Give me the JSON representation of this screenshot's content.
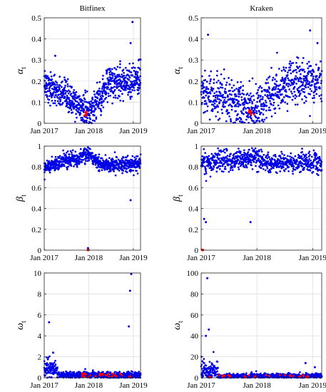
{
  "chart_data": [
    {
      "type": "scatter",
      "title": "Bitfinex",
      "ylabel": "α",
      "ylabel_sub": "t",
      "x_ticks": [
        "Jan 2017",
        "Jan 2018",
        "Jan 2019"
      ],
      "xlim": [
        "2017-01",
        "2019-03"
      ],
      "ylim": [
        0,
        0.5
      ],
      "y_ticks": [
        "0",
        "0.1",
        "0.2",
        "0.3",
        "0.4",
        "0.5"
      ],
      "grid": true,
      "colors": {
        "points": "#0000e6",
        "highlight": "#ff0000"
      },
      "key_points": [
        [
          "2017-01-15",
          0.18
        ],
        [
          "2017-04-01",
          0.16
        ],
        [
          "2017-06-15",
          0.12
        ],
        [
          "2017-09-01",
          0.09
        ],
        [
          "2017-11-15",
          0.06
        ],
        [
          "2017-12-20",
          0.04
        ],
        [
          "2018-03-01",
          0.1
        ],
        [
          "2018-05-15",
          0.17
        ],
        [
          "2018-08-01",
          0.2
        ],
        [
          "2018-10-15",
          0.18
        ],
        [
          "2018-12-25",
          0.48
        ],
        [
          "2018-12-10",
          0.38
        ],
        [
          "2017-04-01",
          0.32
        ]
      ]
    },
    {
      "type": "scatter",
      "title": "Kraken",
      "ylabel": "α",
      "ylabel_sub": "t",
      "x_ticks": [
        "Jan 2017",
        "Jan 2018",
        "Jan 2019"
      ],
      "xlim": [
        "2017-01",
        "2019-03"
      ],
      "ylim": [
        0,
        0.5
      ],
      "y_ticks": [
        "0",
        "0.1",
        "0.2",
        "0.3",
        "0.4",
        "0.5"
      ],
      "grid": true,
      "colors": {
        "points": "#0000e6",
        "highlight": "#ff0000"
      },
      "key_points": [
        [
          "2017-01-15",
          0.15
        ],
        [
          "2017-02-15",
          0.42
        ],
        [
          "2017-05-01",
          0.1
        ],
        [
          "2017-09-01",
          0.08
        ],
        [
          "2017-12-01",
          0.05
        ],
        [
          "2018-04-01",
          0.13
        ],
        [
          "2018-07-01",
          0.17
        ],
        [
          "2018-10-01",
          0.2
        ],
        [
          "2018-12-15",
          0.44
        ],
        [
          "2019-02-01",
          0.38
        ]
      ]
    },
    {
      "type": "scatter",
      "title": "",
      "ylabel": "β",
      "ylabel_sub": "t",
      "x_ticks": [
        "Jan 2017",
        "Jan 2018",
        "Jan 2019"
      ],
      "xlim": [
        "2017-01",
        "2019-03"
      ],
      "ylim": [
        0,
        1
      ],
      "y_ticks": [
        "0",
        "0.2",
        "0.4",
        "0.6",
        "0.8",
        "1"
      ],
      "grid": true,
      "colors": {
        "points": "#0000e6",
        "highlight": "#ff0000"
      },
      "key_points": [
        [
          "2017-01-15",
          0.8
        ],
        [
          "2017-06-01",
          0.82
        ],
        [
          "2017-12-15",
          0.96
        ],
        [
          "2018-06-01",
          0.84
        ],
        [
          "2018-12-01",
          0.8
        ],
        [
          "2017-12-25",
          0.02
        ],
        [
          "2018-12-10",
          0.48
        ]
      ]
    },
    {
      "type": "scatter",
      "title": "",
      "ylabel": "β",
      "ylabel_sub": "t",
      "x_ticks": [
        "Jan 2017",
        "Jan 2018",
        "Jan 2019"
      ],
      "xlim": [
        "2017-01",
        "2019-03"
      ],
      "ylim": [
        0,
        1
      ],
      "y_ticks": [
        "0",
        "0.2",
        "0.4",
        "0.6",
        "0.8",
        "1"
      ],
      "grid": true,
      "colors": {
        "points": "#0000e6",
        "highlight": "#ff0000"
      },
      "key_points": [
        [
          "2017-01-20",
          0.3
        ],
        [
          "2017-02-01",
          0.27
        ],
        [
          "2017-06-01",
          0.86
        ],
        [
          "2017-11-20",
          0.27
        ],
        [
          "2018-01-01",
          0.95
        ],
        [
          "2018-06-01",
          0.85
        ],
        [
          "2018-12-01",
          0.8
        ]
      ]
    },
    {
      "type": "scatter",
      "title": "",
      "ylabel": "ω",
      "ylabel_sub": "t",
      "x_ticks": [
        "Jan 2017",
        "Jan 2018",
        "Jan 2019"
      ],
      "xlim": [
        "2017-01",
        "2019-03"
      ],
      "ylim": [
        0,
        10
      ],
      "y_ticks": [
        "0",
        "2",
        "4",
        "6",
        "8",
        "10"
      ],
      "grid": true,
      "colors": {
        "points": "#0000e6",
        "highlight": "#ff0000"
      },
      "key_points": [
        [
          "2017-02-10",
          5.3
        ],
        [
          "2017-03-15",
          2.4
        ],
        [
          "2017-06-01",
          0.3
        ],
        [
          "2018-06-01",
          0.3
        ],
        [
          "2018-12-15",
          9.9
        ],
        [
          "2018-12-05",
          8.3
        ],
        [
          "2018-11-25",
          4.9
        ]
      ]
    },
    {
      "type": "scatter",
      "title": "",
      "ylabel": "ω",
      "ylabel_sub": "t",
      "x_ticks": [
        "Jan 2017",
        "Jan 2018",
        "Jan 2019"
      ],
      "xlim": [
        "2017-01",
        "2019-03"
      ],
      "ylim": [
        0,
        100
      ],
      "y_ticks": [
        "0",
        "20",
        "40",
        "60",
        "80",
        "100"
      ],
      "grid": true,
      "colors": {
        "points": "#0000e6",
        "highlight": "#ff0000"
      },
      "key_points": [
        [
          "2017-02-10",
          95
        ],
        [
          "2017-02-20",
          46
        ],
        [
          "2017-02-01",
          40
        ],
        [
          "2017-04-01",
          5
        ],
        [
          "2017-09-01",
          2
        ],
        [
          "2018-06-01",
          1
        ],
        [
          "2018-11-15",
          14
        ],
        [
          "2019-01-15",
          10
        ]
      ]
    }
  ]
}
